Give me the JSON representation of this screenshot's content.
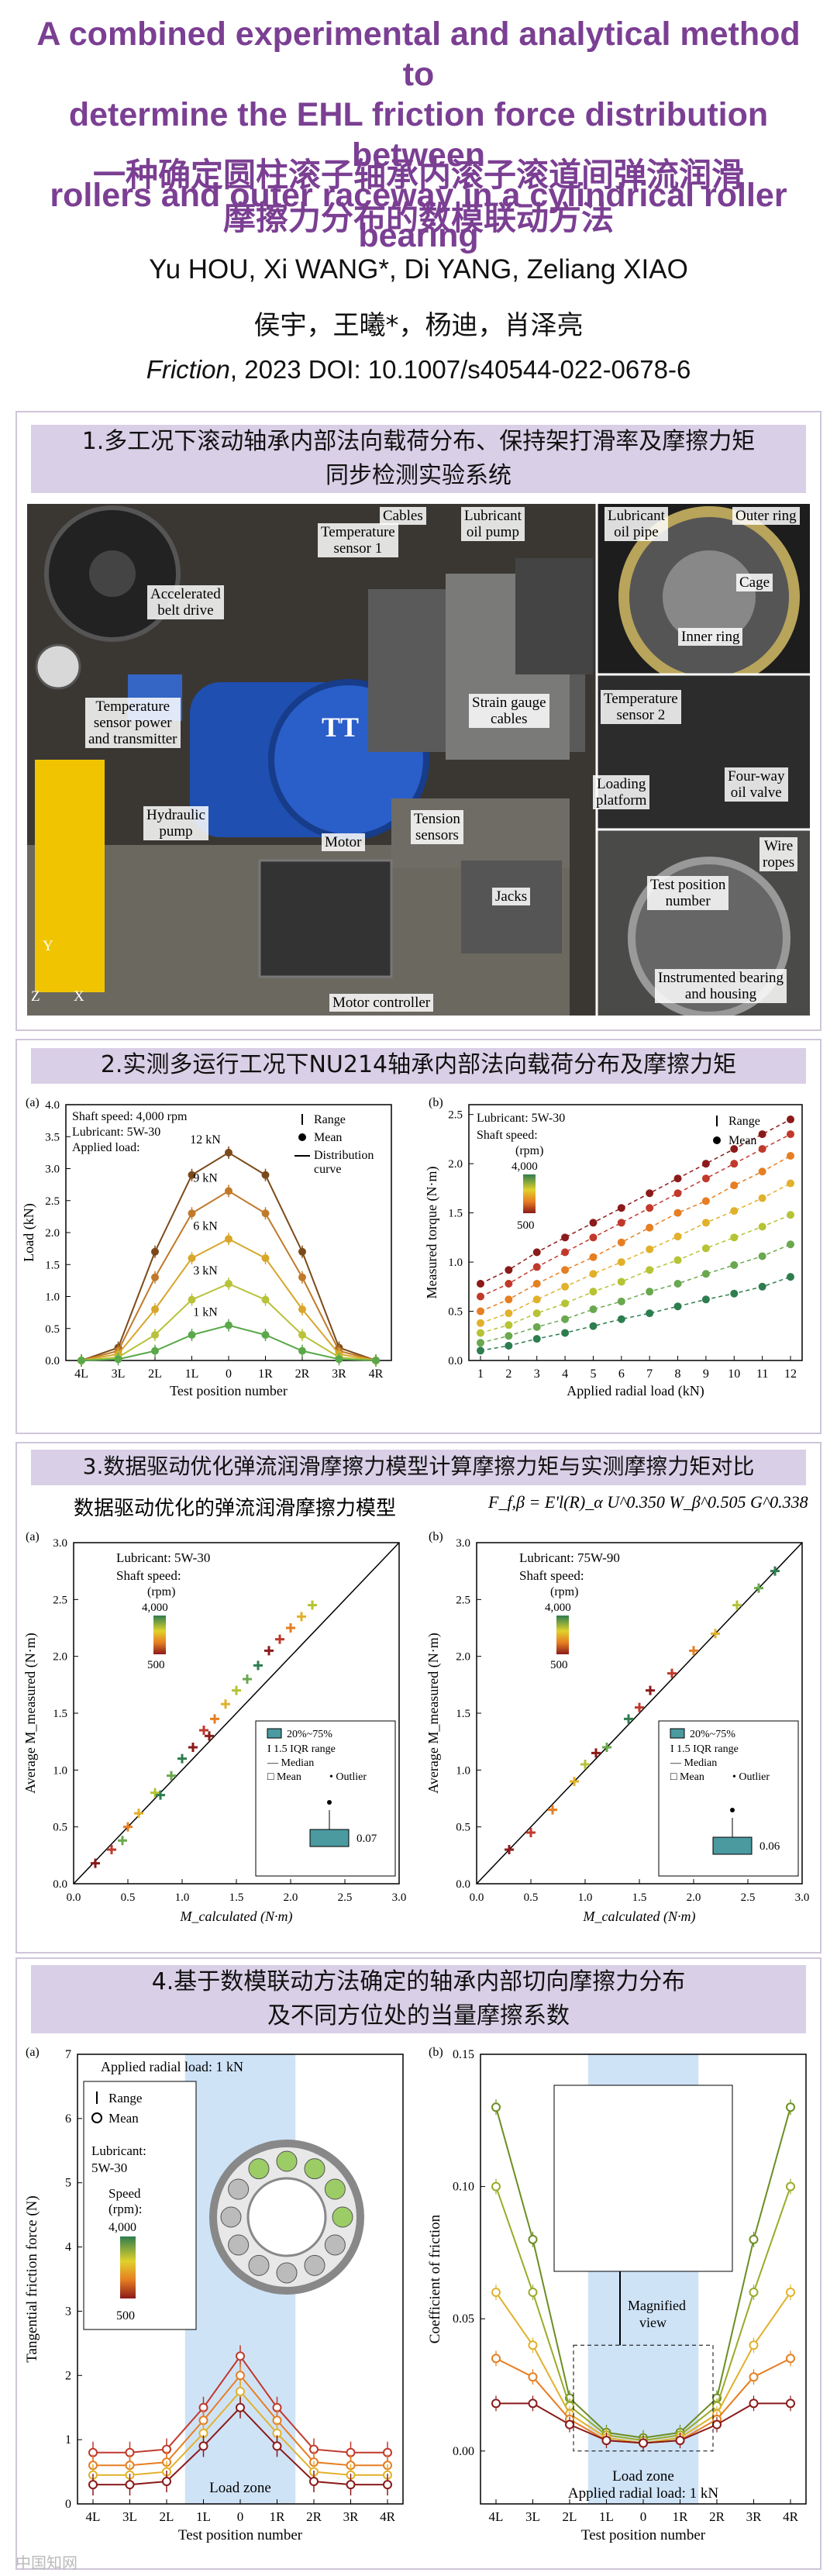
{
  "header": {
    "title_en_1": "A combined experimental and analytical method to",
    "title_en_2": "determine the EHL friction force distribution between",
    "title_en_3": "rollers and outer raceway in a cylindrical roller bearing",
    "title_cn_1": "一种确定圆柱滚子轴承内滚子滚道间弹流润滑",
    "title_cn_2": "摩擦力分布的数模联动方法",
    "authors_en": "Yu HOU, Xi WANG*, Di YANG, Zeliang XIAO",
    "authors_cn": "侯宇，王曦*，杨迪，肖泽亮",
    "journal": "Friction",
    "citation_rest": ", 2023    DOI: 10.1007/s40544-022-0678-6"
  },
  "section1": {
    "title_1": "1.多工况下滚动轴承内部法向载荷分布、保持架打滑率及摩擦力矩",
    "title_2": "同步检测实验系统",
    "labels": {
      "accelerated_belt_drive": "Accelerated\nbelt drive",
      "temperature_sensor_1": "Temperature\nsensor 1",
      "cables": "Cables",
      "lubricant_oil_pump": "Lubricant\noil pump",
      "lubricant_oil_pipe": "Lubricant\noil pipe",
      "outer_ring": "Outer ring",
      "cage": "Cage",
      "inner_ring": "Inner ring",
      "temp_sensor_power": "Temperature\nsensor power\nand transmitter",
      "strain_gauge_cables": "Strain gauge\ncables",
      "temperature_sensor_2": "Temperature\nsensor 2",
      "hydraulic_pump": "Hydraulic\npump",
      "motor": "Motor",
      "loading_platform": "Loading\nplatform",
      "four_way_oil_valve": "Four-way\noil valve",
      "tension_sensors": "Tension\nsensors",
      "jacks": "Jacks",
      "wire_ropes": "Wire\nropes",
      "test_position_number": "Test position\nnumber",
      "instrumented_bearing": "Instrumented bearing\nand housing",
      "motor_controller": "Motor controller",
      "axis_y": "Y",
      "axis_x": "X",
      "axis_z": "Z"
    }
  },
  "section2": {
    "title": "2.实测多运行工况下NU214轴承内部法向载荷分布及摩擦力矩",
    "chart_a": {
      "panel_label": "(a)",
      "shaft_speed": "Shaft speed: 4,000 rpm",
      "lubricant": "Lubricant: 5W-30",
      "applied_load": "Applied load:",
      "legend_range": "Range",
      "legend_mean": "Mean",
      "legend_curve": "Distribution\ncurve",
      "xlabel": "Test position number",
      "ylabel": "Load (kN)"
    },
    "chart_b": {
      "panel_label": "(b)",
      "lubricant": "Lubricant: 5W-30",
      "shaft_speed": "Shaft speed:",
      "rpm": "(rpm)",
      "cb_top": "4,000",
      "cb_bottom": "500",
      "legend_range": "Range",
      "legend_mean": "Mean",
      "xlabel": "Applied radial load (kN)",
      "ylabel": "Measured torque (N·m)"
    }
  },
  "section3": {
    "title": "3.数据驱动优化弹流润滑摩擦力模型计算摩擦力矩与实测摩擦力矩对比",
    "model_label": "数据驱动优化的弹流润滑摩擦力模型",
    "formula": "F_f,β = E'l(R)_α U^0.350 W_β^0.505 G^0.338",
    "chart_a": {
      "panel_label": "(a)",
      "lubricant": "Lubricant: 5W-30",
      "shaft_speed": "Shaft speed:",
      "rpm": "(rpm)",
      "cb_top": "4,000",
      "cb_bottom": "500",
      "box_legend_1": "20%~75%",
      "box_legend_2": "1.5 IQR range",
      "box_legend_3": "Median",
      "box_legend_4": "Mean",
      "box_legend_5": "Outlier",
      "box_value": "0.07",
      "xlabel": "M_calculated (N·m)",
      "ylabel": "Average M_measured (N·m)"
    },
    "chart_b": {
      "panel_label": "(b)",
      "lubricant": "Lubricant: 75W-90",
      "shaft_speed": "Shaft speed:",
      "rpm": "(rpm)",
      "cb_top": "4,000",
      "cb_bottom": "500",
      "box_legend_1": "20%~75%",
      "box_legend_2": "1.5 IQR range",
      "box_legend_3": "Median",
      "box_legend_4": "Mean",
      "box_legend_5": "Outlier",
      "box_value": "0.06",
      "xlabel": "M_calculated (N·m)",
      "ylabel": "Average M_measured (N·m)"
    }
  },
  "section4": {
    "title_1": "4.基于数模联动方法确定的轴承内部切向摩擦力分布",
    "title_2": "及不同方位处的当量摩擦系数",
    "chart_a": {
      "panel_label": "(a)",
      "applied": "Applied radial load: 1 kN",
      "legend_range": "Range",
      "legend_mean": "Mean",
      "lubricant": "Lubricant:",
      "lubricant_val": "5W-30",
      "speed": "Speed",
      "rpm": "(rpm):",
      "cb_top": "4,000",
      "cb_bottom": "500",
      "load_zone": "Load zone",
      "xlabel": "Test position number",
      "ylabel": "Tangential friction force (N)"
    },
    "chart_b": {
      "panel_label": "(b)",
      "magnified": "Magnified\nview",
      "load_zone": "Load zone",
      "applied": "Applied radial load: 1 kN",
      "xlabel": "Test position number",
      "ylabel": "Coefficient of friction"
    },
    "watermark": "中国知网"
  },
  "chart_data": [
    {
      "type": "line",
      "title": "",
      "xlabel": "Test position number",
      "ylabel": "Load (kN)",
      "categories": [
        "4L",
        "3L",
        "2L",
        "1L",
        "0",
        "1R",
        "2R",
        "3R",
        "4R"
      ],
      "ylim": [
        0,
        4.0
      ],
      "series": [
        {
          "name": "12 kN",
          "values": [
            0,
            0.2,
            1.7,
            2.9,
            3.25,
            2.9,
            1.7,
            0.2,
            0
          ]
        },
        {
          "name": "9 kN",
          "values": [
            0,
            0.15,
            1.3,
            2.3,
            2.65,
            2.3,
            1.3,
            0.15,
            0
          ]
        },
        {
          "name": "6 kN",
          "values": [
            0,
            0.1,
            0.8,
            1.6,
            1.9,
            1.6,
            0.8,
            0.1,
            0
          ]
        },
        {
          "name": "3 kN",
          "values": [
            0,
            0.05,
            0.4,
            0.95,
            1.2,
            0.95,
            0.4,
            0.05,
            0
          ]
        },
        {
          "name": "1 kN",
          "values": [
            0,
            0.02,
            0.15,
            0.4,
            0.55,
            0.4,
            0.15,
            0.02,
            0
          ]
        }
      ]
    },
    {
      "type": "line",
      "title": "",
      "xlabel": "Applied radial load (kN)",
      "ylabel": "Measured torque (N·m)",
      "x": [
        1,
        2,
        3,
        4,
        5,
        6,
        7,
        8,
        9,
        10,
        11,
        12
      ],
      "ylim": [
        0,
        2.6
      ],
      "series": [
        {
          "values": [
            0.78,
            0.92,
            1.1,
            1.25,
            1.4,
            1.55,
            1.7,
            1.85,
            2.0,
            2.15,
            2.3,
            2.45
          ]
        },
        {
          "values": [
            0.65,
            0.78,
            0.95,
            1.1,
            1.25,
            1.4,
            1.55,
            1.7,
            1.85,
            2.0,
            2.15,
            2.3
          ]
        },
        {
          "values": [
            0.5,
            0.62,
            0.78,
            0.92,
            1.05,
            1.2,
            1.35,
            1.5,
            1.62,
            1.78,
            1.92,
            2.08
          ]
        },
        {
          "values": [
            0.38,
            0.48,
            0.62,
            0.75,
            0.88,
            1.0,
            1.13,
            1.26,
            1.4,
            1.52,
            1.65,
            1.8
          ]
        },
        {
          "values": [
            0.28,
            0.36,
            0.48,
            0.58,
            0.7,
            0.8,
            0.92,
            1.02,
            1.14,
            1.25,
            1.36,
            1.48
          ]
        },
        {
          "values": [
            0.18,
            0.25,
            0.34,
            0.42,
            0.52,
            0.6,
            0.7,
            0.78,
            0.88,
            0.97,
            1.06,
            1.18
          ]
        },
        {
          "values": [
            0.1,
            0.15,
            0.22,
            0.28,
            0.35,
            0.42,
            0.48,
            0.55,
            0.62,
            0.68,
            0.75,
            0.85
          ]
        }
      ]
    },
    {
      "type": "scatter",
      "xlabel": "M_calculated (N·m)",
      "ylabel": "Average M_measured (N·m)",
      "xlim": [
        0,
        3.0
      ],
      "ylim": [
        0,
        3.0
      ],
      "points": [
        [
          0.2,
          0.18
        ],
        [
          0.35,
          0.3
        ],
        [
          0.5,
          0.5
        ],
        [
          0.6,
          0.62
        ],
        [
          0.75,
          0.8
        ],
        [
          0.9,
          0.95
        ],
        [
          1.0,
          1.1
        ],
        [
          1.1,
          1.2
        ],
        [
          1.2,
          1.35
        ],
        [
          1.3,
          1.45
        ],
        [
          1.4,
          1.58
        ],
        [
          1.5,
          1.7
        ],
        [
          1.6,
          1.8
        ],
        [
          1.7,
          1.92
        ],
        [
          1.8,
          2.05
        ],
        [
          1.9,
          2.15
        ],
        [
          2.0,
          2.25
        ],
        [
          2.1,
          2.35
        ],
        [
          2.2,
          2.45
        ],
        [
          0.45,
          0.38
        ],
        [
          0.8,
          0.78
        ],
        [
          1.25,
          1.3
        ]
      ]
    },
    {
      "type": "scatter",
      "xlabel": "M_calculated (N·m)",
      "ylabel": "Average M_measured (N·m)",
      "xlim": [
        0,
        3.0
      ],
      "ylim": [
        0,
        3.0
      ],
      "points": [
        [
          0.3,
          0.3
        ],
        [
          0.5,
          0.45
        ],
        [
          0.7,
          0.65
        ],
        [
          0.9,
          0.9
        ],
        [
          1.0,
          1.05
        ],
        [
          1.2,
          1.2
        ],
        [
          1.4,
          1.45
        ],
        [
          1.6,
          1.7
        ],
        [
          1.8,
          1.85
        ],
        [
          2.0,
          2.05
        ],
        [
          2.2,
          2.2
        ],
        [
          2.4,
          2.45
        ],
        [
          2.6,
          2.6
        ],
        [
          2.75,
          2.75
        ],
        [
          1.1,
          1.15
        ],
        [
          1.5,
          1.55
        ]
      ]
    },
    {
      "type": "line",
      "xlabel": "Test position number",
      "ylabel": "Tangential friction force (N)",
      "categories": [
        "4L",
        "3L",
        "2L",
        "1L",
        "0",
        "1R",
        "2R",
        "3R",
        "4R"
      ],
      "ylim": [
        0,
        7
      ],
      "series": [
        {
          "values": [
            0.8,
            0.8,
            0.85,
            1.5,
            2.3,
            1.5,
            0.85,
            0.8,
            0.8
          ]
        },
        {
          "values": [
            0.6,
            0.6,
            0.65,
            1.3,
            2.0,
            1.3,
            0.65,
            0.6,
            0.6
          ]
        },
        {
          "values": [
            0.45,
            0.45,
            0.5,
            1.1,
            1.75,
            1.1,
            0.5,
            0.45,
            0.45
          ]
        },
        {
          "values": [
            0.3,
            0.3,
            0.35,
            0.9,
            1.5,
            0.9,
            0.35,
            0.3,
            0.3
          ]
        }
      ]
    },
    {
      "type": "line",
      "xlabel": "Test position number",
      "ylabel": "Coefficient of friction",
      "categories": [
        "4L",
        "3L",
        "2L",
        "1L",
        "0",
        "1R",
        "2R",
        "3R",
        "4R"
      ],
      "ylim": [
        0,
        0.15
      ],
      "series": [
        {
          "values": [
            0.13,
            0.08,
            0.02,
            0.007,
            0.005,
            0.007,
            0.02,
            0.08,
            0.13
          ]
        },
        {
          "values": [
            0.1,
            0.06,
            0.017,
            0.006,
            0.004,
            0.006,
            0.017,
            0.06,
            0.1
          ]
        },
        {
          "values": [
            0.06,
            0.04,
            0.014,
            0.005,
            0.003,
            0.005,
            0.014,
            0.04,
            0.06
          ]
        },
        {
          "values": [
            0.035,
            0.028,
            0.012,
            0.004,
            0.003,
            0.004,
            0.012,
            0.028,
            0.035
          ]
        },
        {
          "values": [
            0.018,
            0.018,
            0.01,
            0.004,
            0.003,
            0.004,
            0.01,
            0.018,
            0.018
          ]
        }
      ]
    }
  ]
}
